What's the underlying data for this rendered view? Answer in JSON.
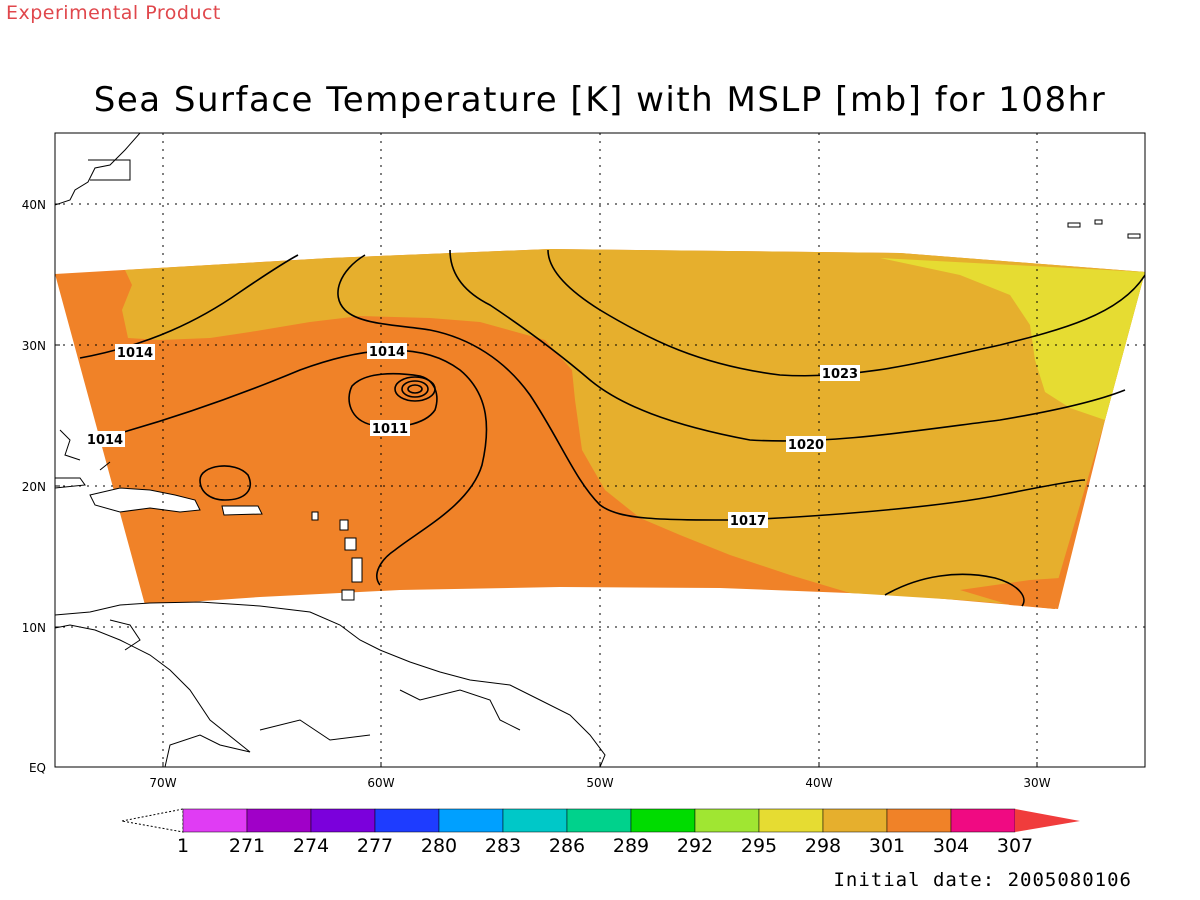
{
  "product_tag": "Experimental Product",
  "title": "Sea Surface Temperature [K] with MSLP [mb] for 108hr",
  "initial_date": "Initial date: 2005080106",
  "lat_labels": [
    "EQ",
    "10N",
    "20N",
    "30N",
    "40N"
  ],
  "lon_labels": [
    "70W",
    "60W",
    "50W",
    "40W",
    "30W"
  ],
  "colorbar": {
    "labels": [
      "1",
      "271",
      "274",
      "277",
      "280",
      "283",
      "286",
      "289",
      "292",
      "295",
      "298",
      "301",
      "304",
      "307"
    ],
    "colors": [
      "#e03cf4",
      "#a000c8",
      "#7b00dc",
      "#1e3cff",
      "#00a0ff",
      "#00c8c8",
      "#00d28c",
      "#00dc00",
      "#a0e632",
      "#e6dc32",
      "#e6af2d",
      "#f08228",
      "#f00a82",
      "#f03c3c"
    ]
  },
  "map_colors": {
    "sst_298": "#e6dc32",
    "sst_301": "#e6af2d",
    "sst_304": "#f08228"
  },
  "contour_labels": [
    {
      "text": "1014",
      "id": "1014-west-top"
    },
    {
      "text": "1014",
      "id": "1014-center"
    },
    {
      "text": "1014",
      "id": "1014-west-low"
    },
    {
      "text": "1011",
      "id": "1011"
    },
    {
      "text": "1023",
      "id": "1023"
    },
    {
      "text": "1020",
      "id": "1020"
    },
    {
      "text": "1017",
      "id": "1017"
    }
  ]
}
